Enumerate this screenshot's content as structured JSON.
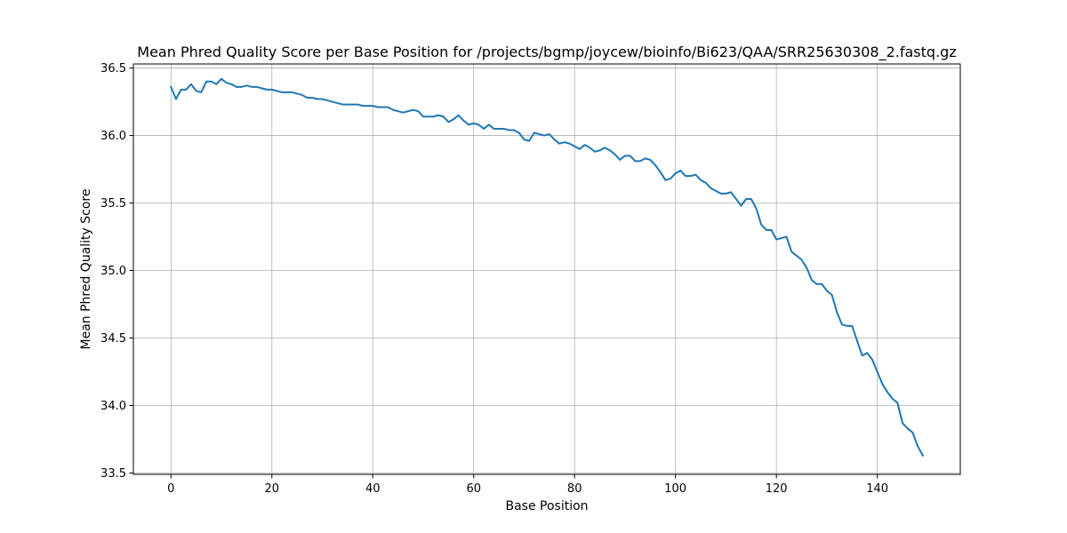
{
  "chart_data": {
    "type": "line",
    "title": "Mean Phred Quality Score per Base Position for /projects/bgmp/joycew/bioinfo/Bi623/QAA/SRR25630308_2.fastq.gz",
    "xlabel": "Base Position",
    "ylabel": "Mean Phred Quality Score",
    "xlim": [
      -7.45,
      156.45
    ],
    "ylim": [
      33.49,
      36.53
    ],
    "xticks": [
      0,
      20,
      40,
      60,
      80,
      100,
      120,
      140
    ],
    "xtick_labels": [
      "0",
      "20",
      "40",
      "60",
      "80",
      "100",
      "120",
      "140"
    ],
    "yticks": [
      33.5,
      34.0,
      34.5,
      35.0,
      35.5,
      36.0,
      36.5
    ],
    "ytick_labels": [
      "33.5",
      "34.0",
      "34.5",
      "35.0",
      "35.5",
      "36.0",
      "36.5"
    ],
    "grid": true,
    "line_color": "#1f77b4",
    "series": [
      {
        "x": [
          0,
          1,
          2,
          3,
          4,
          5,
          6,
          7,
          8,
          9,
          10,
          11,
          12,
          13,
          14,
          15,
          16,
          17,
          18,
          19,
          20,
          21,
          22,
          23,
          24,
          25,
          26,
          27,
          28,
          29,
          30,
          31,
          32,
          33,
          34,
          35,
          36,
          37,
          38,
          39,
          40,
          41,
          42,
          43,
          44,
          45,
          46,
          47,
          48,
          49,
          50,
          51,
          52,
          53,
          54,
          55,
          56,
          57,
          58,
          59,
          60,
          61,
          62,
          63,
          64,
          65,
          66,
          67,
          68,
          69,
          70,
          71,
          72,
          73,
          74,
          75,
          76,
          77,
          78,
          79,
          80,
          81,
          82,
          83,
          84,
          85,
          86,
          87,
          88,
          89,
          90,
          91,
          92,
          93,
          94,
          95,
          96,
          97,
          98,
          99,
          100,
          101,
          102,
          103,
          104,
          105,
          106,
          107,
          108,
          109,
          110,
          111,
          112,
          113,
          114,
          115,
          116,
          117,
          118,
          119,
          120,
          121,
          122,
          123,
          124,
          125,
          126,
          127,
          128,
          129,
          130,
          131,
          132,
          133,
          134,
          135,
          136,
          137,
          138,
          139,
          140,
          141,
          142,
          143,
          144,
          145,
          146,
          147,
          148,
          149
        ],
        "y": [
          36.36,
          36.27,
          36.34,
          36.34,
          36.38,
          36.33,
          36.32,
          36.4,
          36.4,
          36.38,
          36.42,
          36.39,
          36.38,
          36.36,
          36.36,
          36.37,
          36.36,
          36.36,
          36.35,
          36.34,
          36.34,
          36.33,
          36.32,
          36.32,
          36.32,
          36.31,
          36.3,
          36.28,
          36.28,
          36.27,
          36.27,
          36.26,
          36.25,
          36.24,
          36.23,
          36.23,
          36.23,
          36.23,
          36.22,
          36.22,
          36.22,
          36.21,
          36.21,
          36.21,
          36.19,
          36.18,
          36.17,
          36.18,
          36.19,
          36.18,
          36.14,
          36.14,
          36.14,
          36.15,
          36.14,
          36.1,
          36.12,
          36.15,
          36.11,
          36.08,
          36.09,
          36.08,
          36.05,
          36.08,
          36.05,
          36.05,
          36.05,
          36.04,
          36.04,
          36.02,
          35.97,
          35.96,
          36.02,
          36.01,
          36.0,
          36.01,
          35.97,
          35.94,
          35.95,
          35.94,
          35.92,
          35.9,
          35.93,
          35.91,
          35.88,
          35.89,
          35.91,
          35.89,
          35.86,
          35.82,
          35.85,
          35.85,
          35.81,
          35.81,
          35.83,
          35.82,
          35.78,
          35.73,
          35.67,
          35.68,
          35.72,
          35.74,
          35.7,
          35.7,
          35.71,
          35.67,
          35.65,
          35.61,
          35.59,
          35.57,
          35.57,
          35.58,
          35.53,
          35.48,
          35.53,
          35.53,
          35.46,
          35.34,
          35.3,
          35.3,
          35.23,
          35.24,
          35.25,
          35.14,
          35.11,
          35.08,
          35.02,
          34.93,
          34.9,
          34.9,
          34.85,
          34.82,
          34.69,
          34.6,
          34.59,
          34.59,
          34.48,
          34.37,
          34.39,
          34.34,
          34.25,
          34.16,
          34.1,
          34.05,
          34.02,
          33.87,
          33.83,
          33.8,
          33.7,
          33.63
        ]
      }
    ]
  }
}
